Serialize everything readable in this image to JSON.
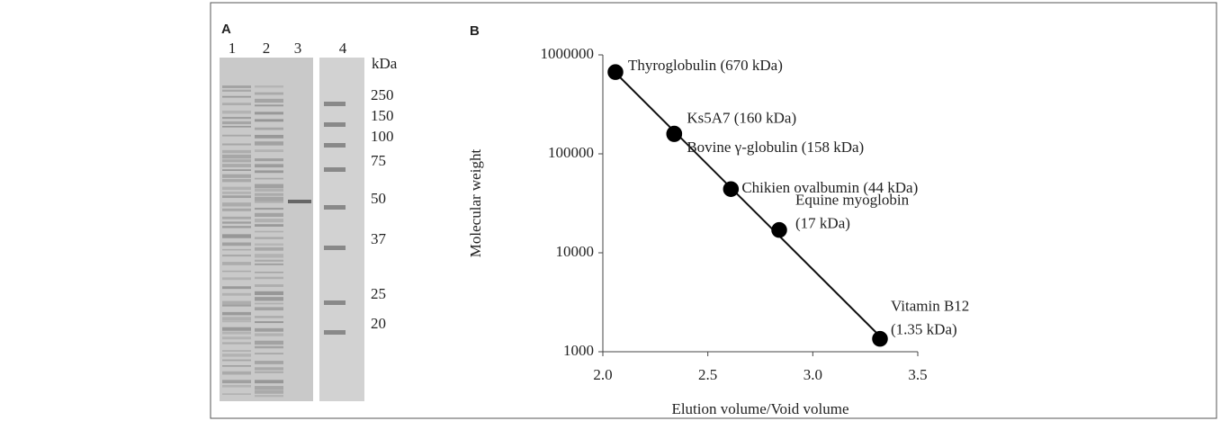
{
  "panel_a": {
    "label": "A",
    "lanes": [
      "1",
      "2",
      "3",
      "4"
    ],
    "unit": "kDa",
    "markers": [
      "250",
      "150",
      "100",
      "75",
      "50",
      "37",
      "25",
      "20"
    ]
  },
  "chart_data": {
    "type": "scatter",
    "panel_label": "B",
    "x_label": "Elution volume/Void volume",
    "y_label": "Molecular weight",
    "log_y": true,
    "trendline": true,
    "xlim": [
      2.0,
      3.5
    ],
    "xticks": [
      {
        "value": 2.0,
        "label": "2.0"
      },
      {
        "value": 2.5,
        "label": "2.5"
      },
      {
        "value": 3.0,
        "label": "3.0"
      },
      {
        "value": 3.5,
        "label": "3.5"
      }
    ],
    "ylim": [
      1000,
      1000000
    ],
    "yticks": [
      1000,
      10000,
      100000,
      1000000
    ],
    "points": [
      {
        "label": [
          "Thyroglobulin (670 kDa)"
        ],
        "x": 2.06,
        "y": 670000,
        "filled": true
      },
      {
        "label": [
          "Ks5A7 (160 kDa)"
        ],
        "x": 2.34,
        "y": 160000,
        "filled": false
      },
      {
        "label": [
          "Bovine γ-globulin (158 kDa)"
        ],
        "x": 2.34,
        "y": 158000,
        "filled": true
      },
      {
        "label": [
          "Chikien ovalbumin (44 kDa)"
        ],
        "x": 2.61,
        "y": 44000,
        "filled": true
      },
      {
        "label": [
          "Equine myoglobin",
          "(17 kDa)"
        ],
        "x": 2.84,
        "y": 17000,
        "filled": true
      },
      {
        "label": [
          "Vitamin B12",
          "(1.35 kDa)"
        ],
        "x": 3.32,
        "y": 1350,
        "filled": true
      }
    ]
  }
}
